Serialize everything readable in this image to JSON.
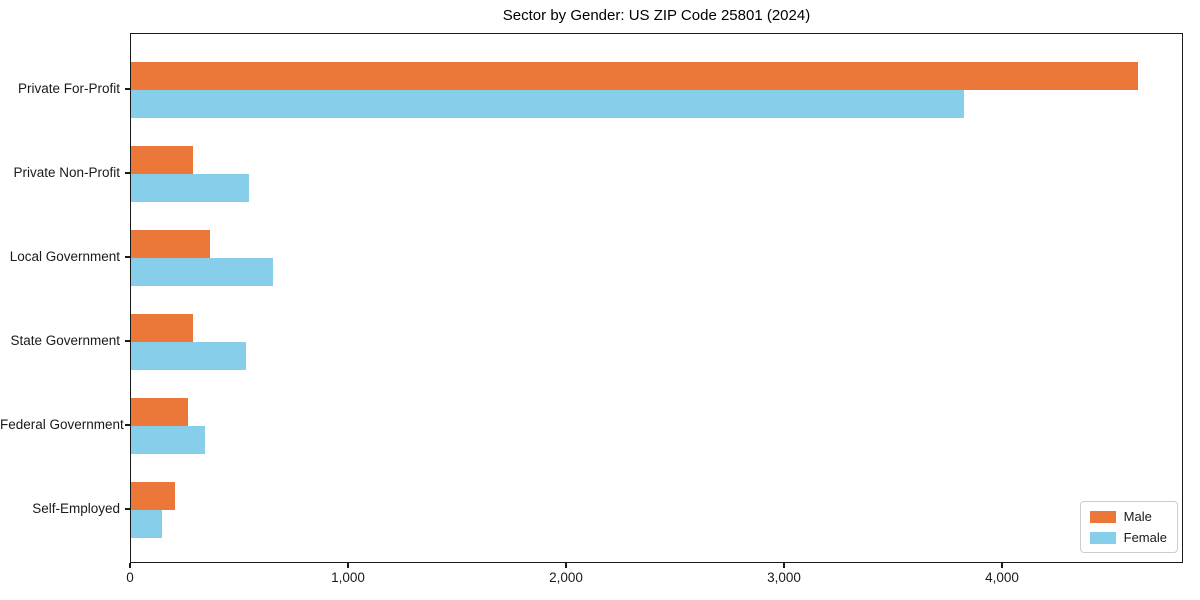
{
  "chart_data": {
    "type": "bar",
    "orientation": "horizontal",
    "title": "Sector by Gender: US ZIP Code 25801 (2024)",
    "categories": [
      "Private For-Profit",
      "Private Non-Profit",
      "Local Government",
      "State Government",
      "Federal Government",
      "Self-Employed"
    ],
    "series": [
      {
        "name": "Male",
        "color": "#eb7839",
        "values": [
          4617,
          286,
          363,
          283,
          262,
          201
        ]
      },
      {
        "name": "Female",
        "color": "#87ceeb",
        "values": [
          3822,
          543,
          653,
          525,
          340,
          141
        ]
      }
    ],
    "xlabel": "",
    "ylabel": "",
    "xlim": [
      0,
      4830
    ],
    "xticks": [
      {
        "value": 0,
        "label": "0"
      },
      {
        "value": 1000,
        "label": "1,000"
      },
      {
        "value": 2000,
        "label": "2,000"
      },
      {
        "value": 3000,
        "label": "3,000"
      },
      {
        "value": 4000,
        "label": "4,000"
      }
    ],
    "grid": false,
    "legend_position": "lower right"
  }
}
